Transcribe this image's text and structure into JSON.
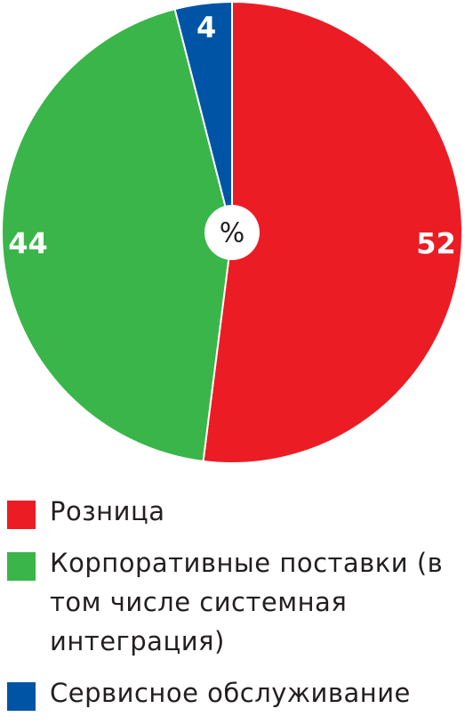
{
  "chart_data": {
    "type": "pie",
    "center_label": "%",
    "categories": [
      "Розница",
      "Корпоративные поставки (в том числе системная интеграция)",
      "Сервисное обслуживание"
    ],
    "values": [
      52,
      44,
      4
    ],
    "colors": [
      "#ec1c24",
      "#3ab54a",
      "#0054a6"
    ]
  }
}
